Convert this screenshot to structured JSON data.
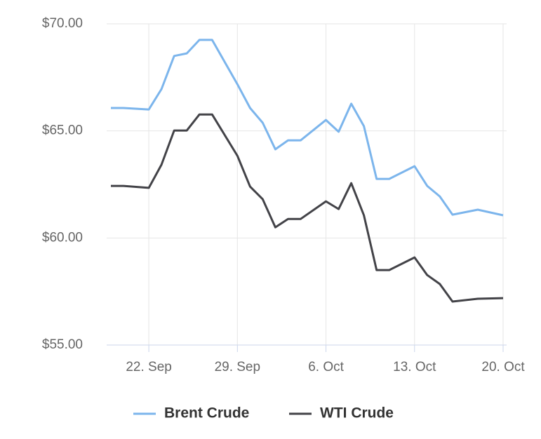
{
  "chart_data": {
    "type": "line",
    "x": [
      "19. Sep",
      "20. Sep",
      "22. Sep",
      "23. Sep",
      "24. Sep",
      "25. Sep",
      "26. Sep",
      "27. Sep",
      "29. Sep",
      "30. Sep",
      "1. Oct",
      "2. Oct",
      "3. Oct",
      "4. Oct",
      "6. Oct",
      "7. Oct",
      "8. Oct",
      "9. Oct",
      "10. Oct",
      "11. Oct",
      "13. Oct",
      "14. Oct",
      "15. Oct",
      "16. Oct",
      "18. Oct",
      "20. Oct"
    ],
    "series": [
      {
        "name": "Brent Crude",
        "color": "#7cb5ec",
        "values": [
          66.07,
          66.07,
          66.0,
          66.95,
          68.5,
          68.62,
          69.25,
          69.25,
          67.18,
          66.07,
          65.38,
          64.14,
          64.56,
          64.56,
          65.51,
          64.96,
          66.27,
          65.22,
          62.76,
          62.76,
          63.35,
          62.43,
          61.94,
          61.09,
          61.32,
          61.06
        ]
      },
      {
        "name": "WTI Crude",
        "color": "#434348",
        "values": [
          62.43,
          62.43,
          62.34,
          63.42,
          65.02,
          65.02,
          65.77,
          65.77,
          63.84,
          62.4,
          61.81,
          60.5,
          60.89,
          60.89,
          61.71,
          61.35,
          62.56,
          61.06,
          58.5,
          58.5,
          59.09,
          58.27,
          57.85,
          57.03,
          57.16,
          57.19
        ]
      }
    ],
    "xlim": [
      "19. Sep",
      "20. Oct"
    ],
    "xticks": [
      "22. Sep",
      "29. Sep",
      "6. Oct",
      "13. Oct",
      "20. Oct"
    ],
    "ylim": [
      55,
      70
    ],
    "yticks": [
      {
        "value": 55,
        "label": "$55.00"
      },
      {
        "value": 60,
        "label": "$60.00"
      },
      {
        "value": 65,
        "label": "$65.00"
      },
      {
        "value": 70,
        "label": "$70.00"
      }
    ],
    "grid": true
  }
}
